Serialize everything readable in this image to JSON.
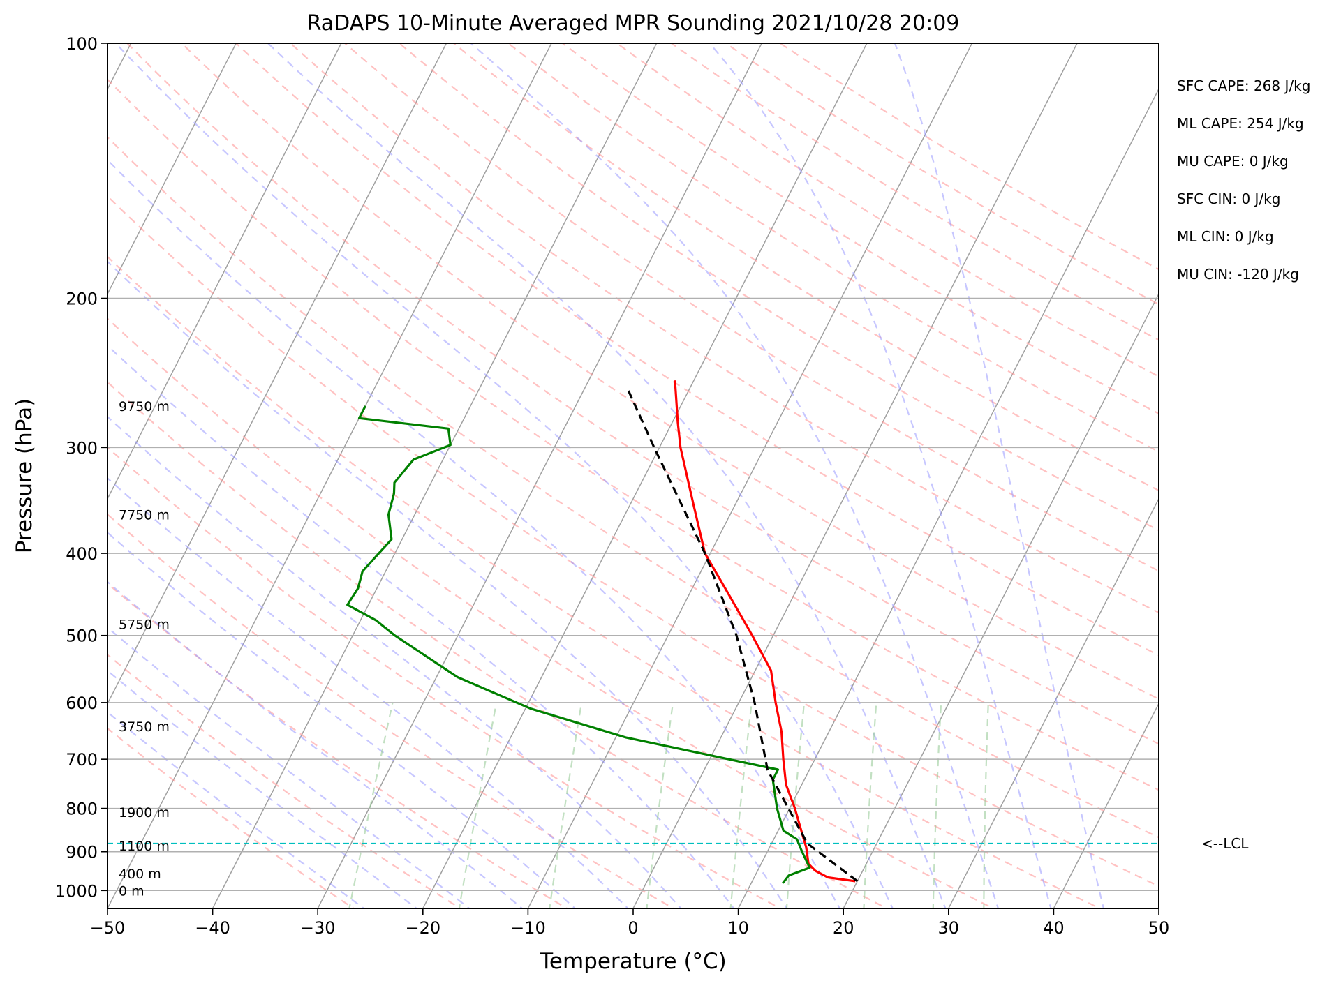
{
  "chart_data": {
    "type": "line",
    "subtype": "skew-t log-p sounding",
    "title": "RaDAPS 10-Minute Averaged MPR Sounding 2021/10/28 20:09",
    "xlabel": "Temperature (°C)",
    "ylabel": "Pressure (hPa)",
    "xlim": [
      -50,
      50
    ],
    "ylim": [
      1050,
      100
    ],
    "y_scale": "log",
    "grid": true,
    "x_ticks": [
      -50,
      -40,
      -30,
      -20,
      -10,
      0,
      10,
      20,
      30,
      40,
      50
    ],
    "x_tick_labels": [
      "−50",
      "−40",
      "−30",
      "−20",
      "−10",
      "0",
      "10",
      "20",
      "30",
      "40",
      "50"
    ],
    "y_ticks": [
      1000,
      900,
      800,
      700,
      600,
      500,
      400,
      300,
      200,
      100
    ],
    "y_tick_labels": [
      "1000",
      "900",
      "800",
      "700",
      "600",
      "500",
      "400",
      "300",
      "200",
      "100"
    ],
    "height_labels": [
      {
        "text": "0 m",
        "p": 1000
      },
      {
        "text": "400 m",
        "p": 955
      },
      {
        "text": "1100 m",
        "p": 885
      },
      {
        "text": "1900 m",
        "p": 808
      },
      {
        "text": "3750 m",
        "p": 640
      },
      {
        "text": "5750 m",
        "p": 485
      },
      {
        "text": "7750 m",
        "p": 360
      },
      {
        "text": "9750 m",
        "p": 268
      }
    ],
    "lcl": {
      "p": 880,
      "label": "<--LCL"
    },
    "indices": [
      "SFC CAPE: 268 J/kg",
      "ML CAPE: 254 J/kg",
      "MU CAPE: 0 J/kg",
      "SFC CIN: 0 J/kg",
      "ML CIN: 0 J/kg",
      "MU CIN: -120 J/kg"
    ],
    "series": [
      {
        "role": "temperature",
        "color": "#ff0000",
        "points": [
          [
            19.8,
            975
          ],
          [
            17.0,
            965
          ],
          [
            15.5,
            948
          ],
          [
            14.5,
            930
          ],
          [
            13.5,
            890
          ],
          [
            12.2,
            850
          ],
          [
            10.5,
            800
          ],
          [
            8.5,
            750
          ],
          [
            7.0,
            700
          ],
          [
            5.5,
            650
          ],
          [
            3.5,
            600
          ],
          [
            1.5,
            550
          ],
          [
            -2.0,
            500
          ],
          [
            -6.0,
            450
          ],
          [
            -10.5,
            400
          ],
          [
            -14.0,
            350
          ],
          [
            -18.0,
            300
          ],
          [
            -19.5,
            280
          ],
          [
            -21.0,
            260
          ],
          [
            -21.8,
            250
          ]
        ]
      },
      {
        "role": "dewpoint",
        "color": "#008000",
        "points": [
          [
            13.0,
            980
          ],
          [
            13.2,
            960
          ],
          [
            14.8,
            940
          ],
          [
            13.3,
            900
          ],
          [
            12.2,
            870
          ],
          [
            10.5,
            850
          ],
          [
            8.8,
            800
          ],
          [
            7.0,
            740
          ],
          [
            7.0,
            720
          ],
          [
            -9.0,
            660
          ],
          [
            -19.5,
            610
          ],
          [
            -28.0,
            560
          ],
          [
            -36.0,
            500
          ],
          [
            -38.5,
            480
          ],
          [
            -42.0,
            460
          ],
          [
            -41.8,
            440
          ],
          [
            -42.2,
            420
          ],
          [
            -41.0,
            385
          ],
          [
            -42.5,
            360
          ],
          [
            -43.0,
            340
          ],
          [
            -43.5,
            330
          ],
          [
            -42.8,
            310
          ],
          [
            -40.0,
            298
          ],
          [
            -41.0,
            285
          ],
          [
            -50.0,
            277
          ],
          [
            -50.0,
            268
          ]
        ]
      },
      {
        "role": "parcel",
        "color": "#000000",
        "style": "dashed",
        "points": [
          [
            20.0,
            975
          ],
          [
            13.4,
            880
          ],
          [
            6.0,
            720
          ],
          [
            1.5,
            600
          ],
          [
            -3.5,
            500
          ],
          [
            -10.5,
            400
          ],
          [
            -20.5,
            300
          ],
          [
            -26.0,
            255
          ]
        ]
      }
    ],
    "background_colors": {
      "isotherms": "#a0a0a0",
      "dry_adiabats": "#ff9999",
      "moist_adiabats": "#9999ff",
      "mixing_ratio": "#99cc99",
      "lcl_line": "#00bfbf"
    }
  }
}
